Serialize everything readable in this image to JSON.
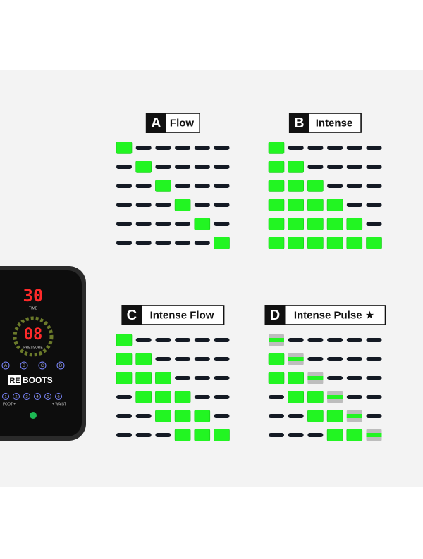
{
  "modes": [
    {
      "letter": "A",
      "label": "Flow"
    },
    {
      "letter": "B",
      "label": "Intense"
    },
    {
      "letter": "C",
      "label": "Intense Flow"
    },
    {
      "letter": "D",
      "label": "Intense Pulse ★"
    }
  ],
  "device": {
    "time": "30",
    "time_label": "TIME",
    "pressure": "08",
    "pressure_label": "PRESSURE",
    "brand_re": "RE",
    "brand": "BOOTS",
    "foot": "FOOT +",
    "waist": "+ WAIST",
    "programs": [
      "A",
      "B",
      "C",
      "D"
    ],
    "levels": [
      "1",
      "2",
      "3",
      "4",
      "5",
      "6"
    ]
  }
}
